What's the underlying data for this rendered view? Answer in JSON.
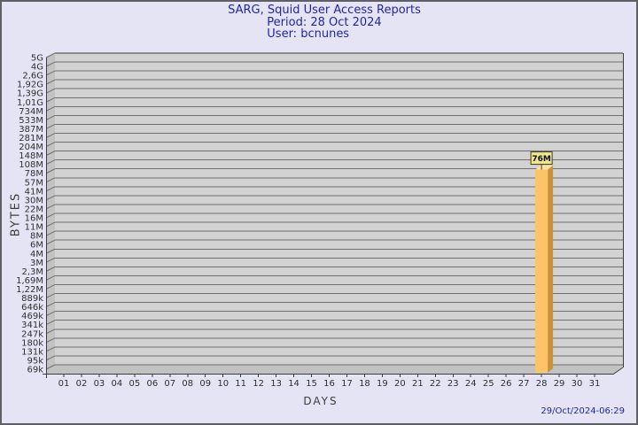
{
  "header": {
    "title": "SARG, Squid User Access Reports",
    "period": "Period: 28 Oct 2024",
    "user": "User: bcnunes"
  },
  "footer": {
    "timestamp": "29/Oct/2024-06:29"
  },
  "colors": {
    "background": "#e4e4f5",
    "window_border": "#5f5f68",
    "title_text": "#2424a3",
    "timestamp_text": "#2424a3",
    "plot_bg": "#d2d2d2",
    "plot_side": "#c2c2c2",
    "gridline": "#6f6f6f",
    "axis_edge": "#3d3d3d",
    "tick_text": "#2f2f2f",
    "axis_title_text": "#3c3c3c",
    "bar_front": "#fcc469",
    "bar_side": "#cd9236",
    "bar_top": "#ffe1a4",
    "flag_bg": "#eee68c",
    "flag_border": "#3d3d1f",
    "flag_text": "#111111"
  },
  "chart_data": {
    "type": "bar",
    "title": "SARG, Squid User Access Reports",
    "subtitle_period": "Period: 28 Oct 2024",
    "subtitle_user": "User: bcnunes",
    "xlabel": "DAYS",
    "ylabel": "BYTES",
    "y_axis_scale": "logarithmic",
    "ylim": [
      "69k",
      "5G"
    ],
    "grid": true,
    "legend": false,
    "y_ticks": [
      "5G",
      "4G",
      "2,6G",
      "1,92G",
      "1,39G",
      "1,01G",
      "734M",
      "533M",
      "387M",
      "281M",
      "204M",
      "148M",
      "108M",
      "78M",
      "57M",
      "41M",
      "30M",
      "22M",
      "16M",
      "11M",
      "8M",
      "6M",
      "4M",
      "3M",
      "2,3M",
      "1,69M",
      "1,22M",
      "889k",
      "646k",
      "469k",
      "341k",
      "247k",
      "180k",
      "131k",
      "95k",
      "69k"
    ],
    "x_ticks": [
      "01",
      "02",
      "03",
      "04",
      "05",
      "06",
      "07",
      "08",
      "09",
      "10",
      "11",
      "12",
      "13",
      "14",
      "15",
      "16",
      "17",
      "18",
      "19",
      "20",
      "21",
      "22",
      "23",
      "24",
      "25",
      "26",
      "27",
      "28",
      "29",
      "30",
      "31"
    ],
    "bars": [
      {
        "day": "28",
        "value_label": "76M"
      }
    ]
  }
}
